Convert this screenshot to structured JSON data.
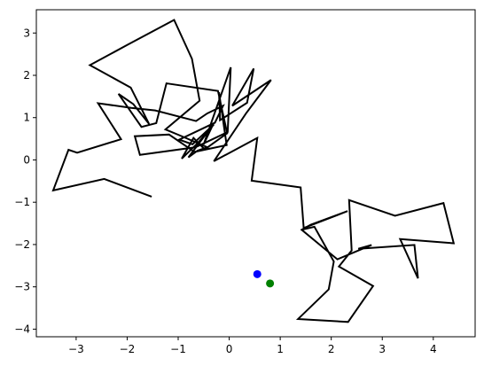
{
  "chart_data": {
    "type": "line",
    "title": "",
    "xlabel": "",
    "ylabel": "",
    "xlim": [
      -3.78,
      4.82
    ],
    "ylim": [
      -4.18,
      3.55
    ],
    "grid": false,
    "x_ticks": [
      -3,
      -2,
      -1,
      0,
      1,
      2,
      3,
      4
    ],
    "y_ticks": [
      -4,
      -3,
      -2,
      -1,
      0,
      1,
      2,
      3
    ],
    "x_tick_labels": [
      "−3",
      "−2",
      "−1",
      "0",
      "1",
      "2",
      "3",
      "4"
    ],
    "y_tick_labels": [
      "−4",
      "−3",
      "−2",
      "−1",
      "0",
      "1",
      "2",
      "3"
    ],
    "series": [
      {
        "type": "line",
        "color": "#000000",
        "points": [
          [
            -1.52,
            -0.87
          ],
          [
            -2.45,
            -0.45
          ],
          [
            -3.45,
            -0.72
          ],
          [
            -3.15,
            0.24
          ],
          [
            -2.98,
            0.17
          ],
          [
            -2.12,
            0.49
          ],
          [
            -2.57,
            1.34
          ],
          [
            -1.92,
            1.23
          ],
          [
            -1.45,
            1.17
          ],
          [
            -0.65,
            0.92
          ],
          [
            -0.43,
            1.1
          ],
          [
            -0.12,
            1.28
          ],
          [
            -0.28,
            0.88
          ],
          [
            -0.98,
            0.48
          ],
          [
            -0.72,
            0.37
          ],
          [
            -0.3,
            0.84
          ],
          [
            -0.6,
            0.42
          ],
          [
            -0.93,
            0.03
          ],
          [
            -0.7,
            0.52
          ],
          [
            -0.48,
            0.25
          ],
          [
            -0.04,
            0.63
          ],
          [
            -0.22,
            1.63
          ],
          [
            -1.23,
            1.81
          ],
          [
            -1.43,
            0.87
          ],
          [
            -1.72,
            0.78
          ],
          [
            -2.17,
            1.56
          ],
          [
            -1.88,
            1.32
          ],
          [
            -1.57,
            0.85
          ],
          [
            -1.93,
            1.71
          ],
          [
            -2.73,
            2.24
          ],
          [
            -1.98,
            2.73
          ],
          [
            -1.08,
            3.31
          ],
          [
            -0.73,
            2.39
          ],
          [
            -0.58,
            1.4
          ],
          [
            -1.25,
            0.72
          ],
          [
            -0.95,
            0.57
          ],
          [
            -0.43,
            0.3
          ],
          [
            -0.62,
            0.22
          ],
          [
            -0.8,
            0.06
          ],
          [
            -0.32,
            0.83
          ],
          [
            -0.5,
            0.37
          ],
          [
            0.03,
            2.19
          ],
          [
            -0.03,
            0.66
          ],
          [
            -0.66,
            0.3
          ],
          [
            -1.75,
            0.12
          ],
          [
            -1.85,
            0.56
          ],
          [
            -1.18,
            0.6
          ],
          [
            -0.68,
            0.19
          ],
          [
            -0.05,
            0.35
          ],
          [
            -0.2,
            1.6
          ],
          [
            -0.18,
            0.94
          ],
          [
            0.35,
            1.35
          ],
          [
            0.48,
            2.16
          ],
          [
            0.06,
            1.28
          ],
          [
            0.82,
            1.89
          ],
          [
            0.33,
            1.1
          ],
          [
            -0.3,
            -0.03
          ],
          [
            0.55,
            0.52
          ],
          [
            0.44,
            -0.49
          ],
          [
            1.4,
            -0.65
          ],
          [
            1.46,
            -1.61
          ],
          [
            2.32,
            -1.21
          ],
          [
            1.6,
            -1.53
          ],
          [
            1.42,
            -1.65
          ],
          [
            2.12,
            -2.35
          ],
          [
            2.79,
            -2.01
          ],
          [
            2.53,
            -2.1
          ],
          [
            3.63,
            -2.01
          ],
          [
            3.7,
            -2.8
          ],
          [
            3.35,
            -1.87
          ],
          [
            4.4,
            -1.97
          ],
          [
            4.2,
            -1.02
          ],
          [
            3.25,
            -1.32
          ],
          [
            2.35,
            -0.95
          ],
          [
            2.4,
            -2.14
          ],
          [
            2.15,
            -2.52
          ],
          [
            2.82,
            -2.98
          ],
          [
            2.33,
            -3.83
          ],
          [
            1.35,
            -3.76
          ],
          [
            1.95,
            -3.06
          ],
          [
            2.05,
            -2.4
          ],
          [
            1.67,
            -1.58
          ],
          [
            1.42,
            -1.65
          ]
        ]
      },
      {
        "type": "scatter",
        "color": "#0000ff",
        "points": [
          [
            0.55,
            -2.7
          ]
        ]
      },
      {
        "type": "scatter",
        "color": "#008000",
        "points": [
          [
            0.8,
            -2.92
          ]
        ]
      }
    ]
  }
}
